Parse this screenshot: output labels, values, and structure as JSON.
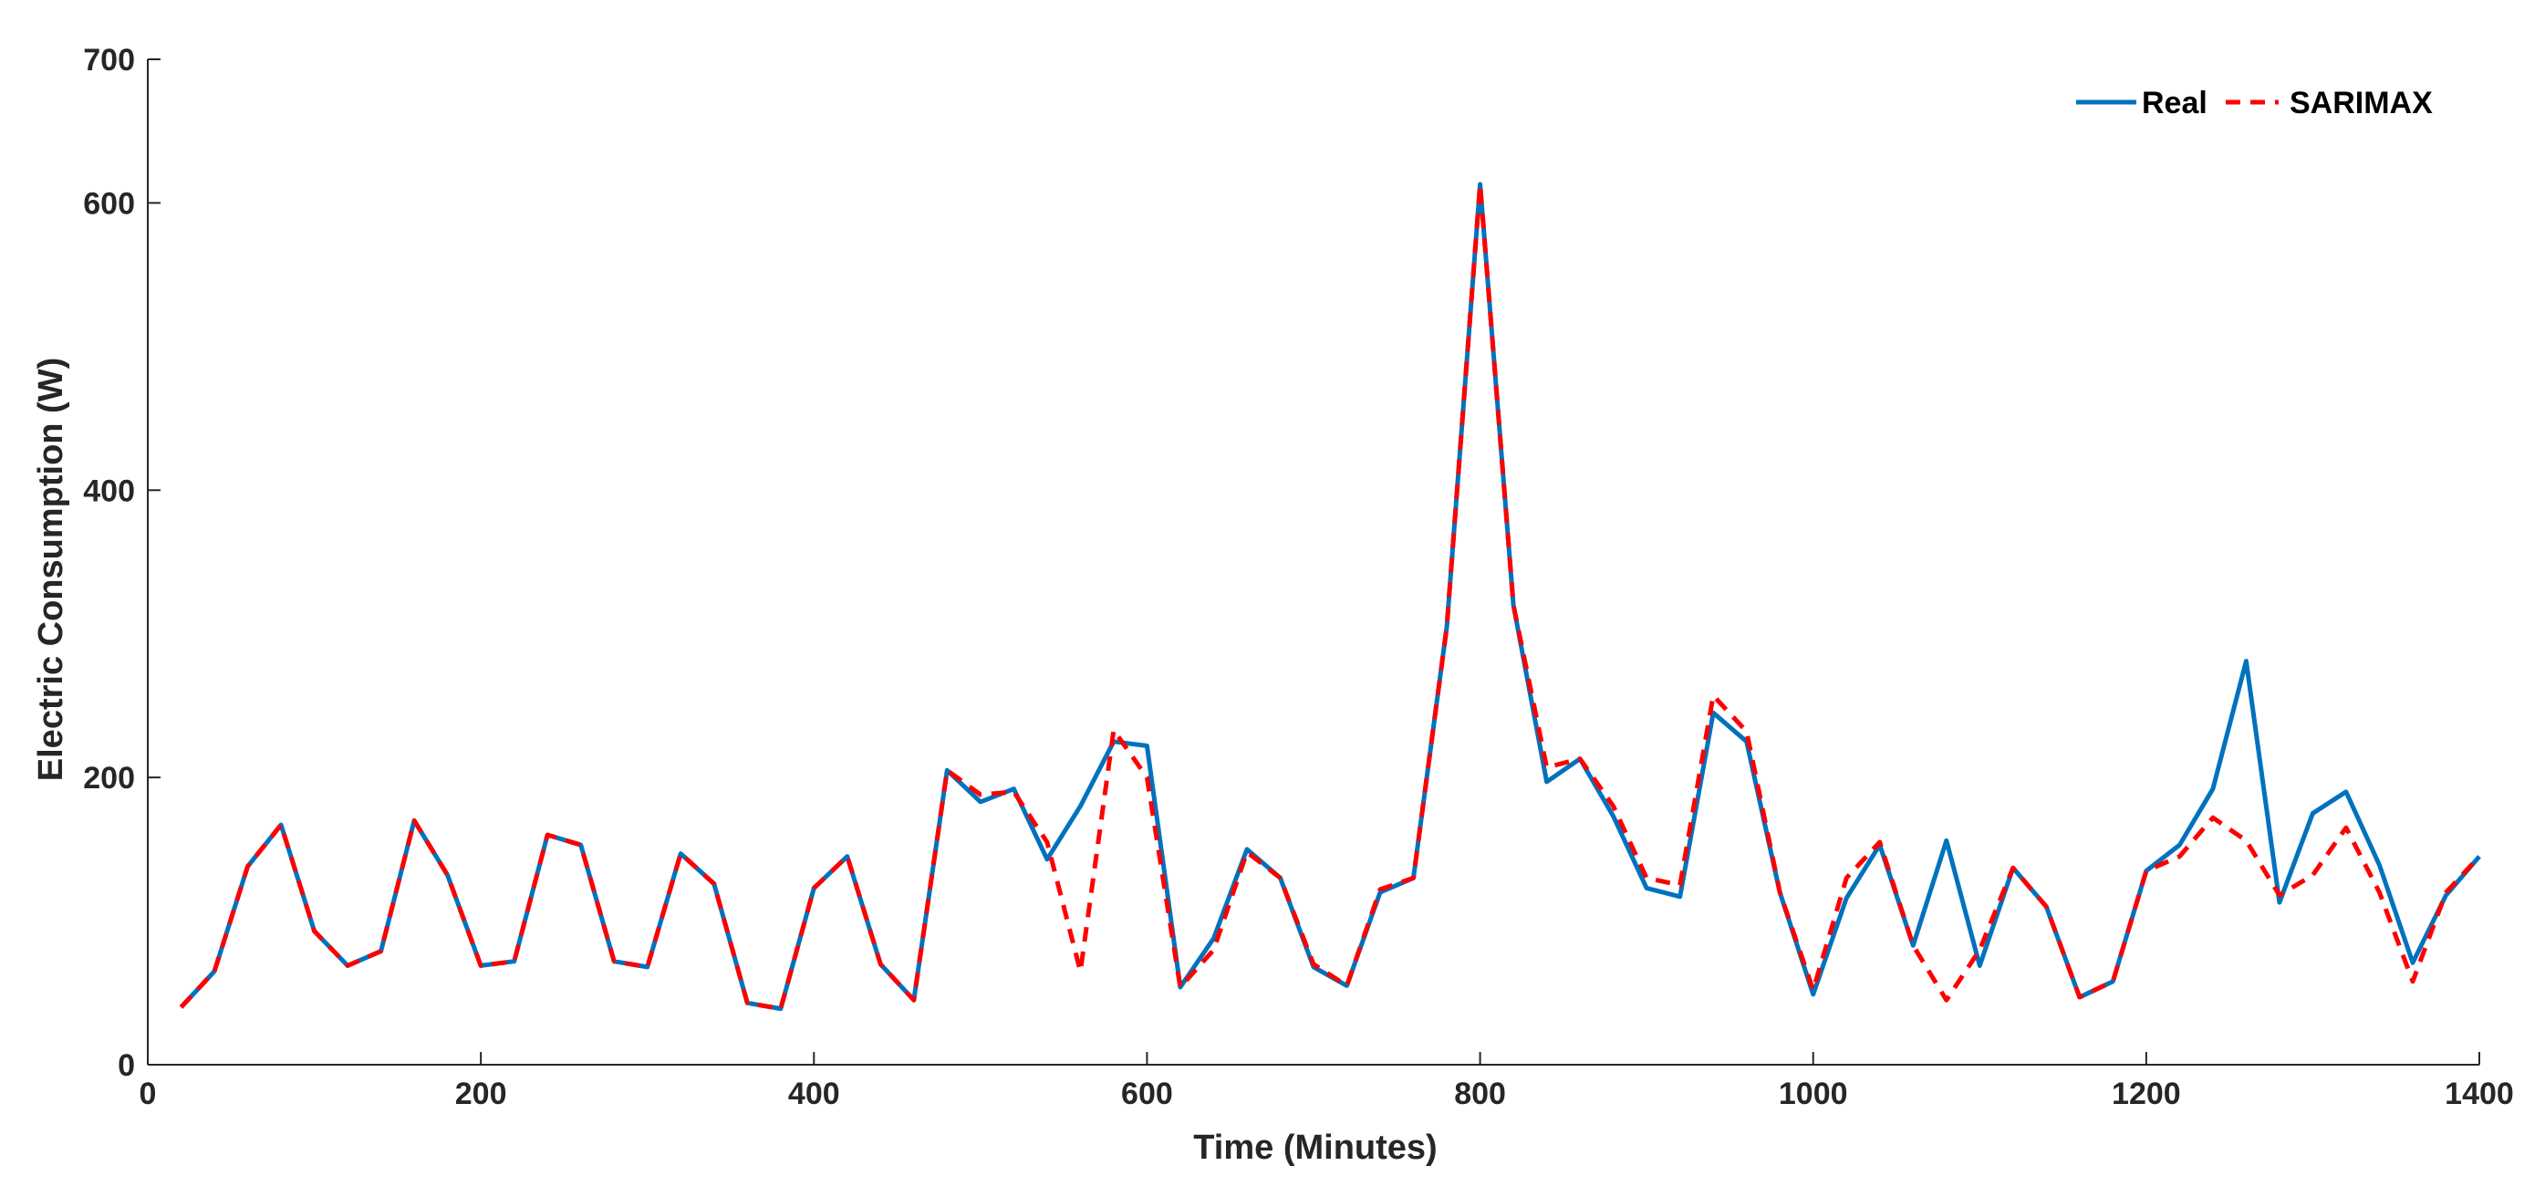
{
  "chart_data": {
    "type": "line",
    "title": "",
    "xlabel": "Time (Minutes)",
    "ylabel": "Electric Consumption (W)",
    "xlim": [
      0,
      1400
    ],
    "ylim": [
      0,
      700
    ],
    "x_ticks": [
      0,
      200,
      400,
      600,
      800,
      1000,
      1200,
      1400
    ],
    "y_ticks": [
      0,
      200,
      400,
      600,
      700
    ],
    "grid": false,
    "legend_position": "top-right",
    "x": [
      20,
      40,
      60,
      80,
      100,
      120,
      140,
      160,
      180,
      200,
      220,
      240,
      260,
      280,
      300,
      320,
      340,
      360,
      380,
      400,
      420,
      440,
      460,
      480,
      500,
      520,
      540,
      560,
      580,
      600,
      620,
      640,
      660,
      680,
      700,
      720,
      740,
      760,
      780,
      800,
      820,
      840,
      860,
      880,
      900,
      920,
      940,
      960,
      980,
      1000,
      1020,
      1040,
      1060,
      1080,
      1100,
      1120,
      1140,
      1160,
      1180,
      1200,
      1220,
      1240,
      1260,
      1280,
      1300,
      1320,
      1340,
      1360,
      1380,
      1400
    ],
    "series": [
      {
        "name": "Real",
        "color": "#0072BD",
        "style": "solid",
        "values": [
          40,
          65,
          138,
          167,
          93,
          69,
          79,
          170,
          132,
          69,
          72,
          160,
          153,
          72,
          68,
          147,
          126,
          43,
          39,
          123,
          145,
          70,
          45,
          205,
          183,
          192,
          143,
          180,
          225,
          222,
          54,
          88,
          150,
          130,
          68,
          55,
          120,
          130,
          305,
          613,
          320,
          197,
          213,
          173,
          123,
          117,
          245,
          225,
          120,
          49,
          116,
          153,
          83,
          156,
          69,
          137,
          110,
          47,
          58,
          135,
          153,
          192,
          281,
          113,
          175,
          190,
          139,
          71,
          118,
          145
        ]
      },
      {
        "name": "SARIMAX",
        "color": "#FF0000",
        "style": "dashed",
        "values": [
          40,
          65,
          138,
          167,
          93,
          69,
          79,
          170,
          132,
          69,
          72,
          160,
          153,
          72,
          68,
          147,
          126,
          43,
          39,
          123,
          145,
          70,
          45,
          205,
          188,
          190,
          155,
          65,
          233,
          200,
          54,
          80,
          148,
          130,
          70,
          55,
          122,
          130,
          305,
          613,
          320,
          207,
          213,
          180,
          130,
          125,
          257,
          232,
          120,
          52,
          130,
          155,
          83,
          45,
          80,
          137,
          110,
          47,
          58,
          135,
          145,
          172,
          156,
          118,
          132,
          165,
          120,
          58,
          120,
          145
        ]
      }
    ]
  }
}
